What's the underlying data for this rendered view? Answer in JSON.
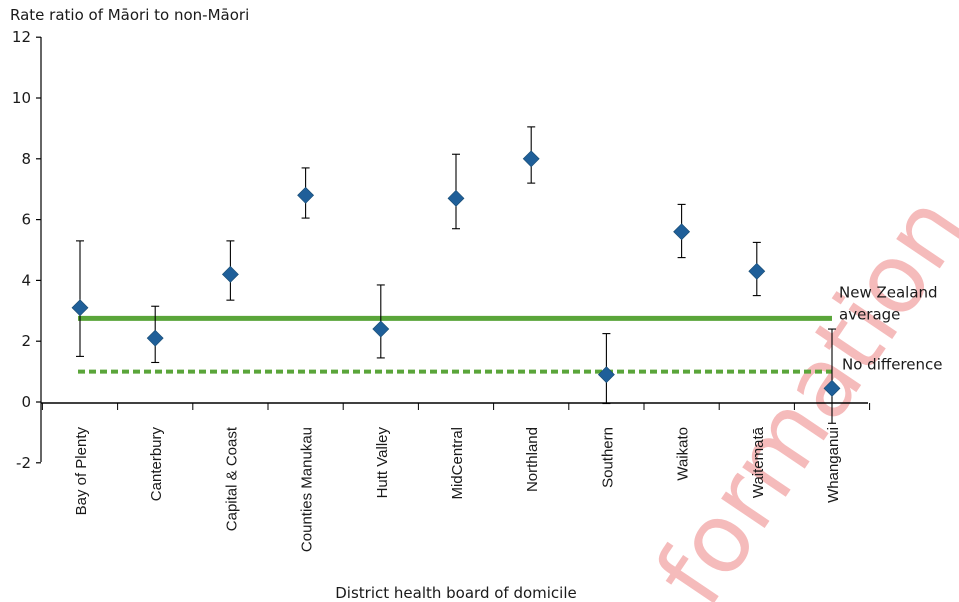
{
  "chart_data": {
    "type": "scatter",
    "ylabel": "Rate ratio of Māori to non-Māori",
    "xlabel": "District health board of domicile",
    "ylim": [
      -2,
      12
    ],
    "yticks": [
      -2,
      0,
      2,
      4,
      6,
      8,
      10,
      12
    ],
    "grid": false,
    "categories": [
      "Bay of Plenty",
      "Canterbury",
      "Capital & Coast",
      "Counties Manukau",
      "Hutt Valley",
      "MidCentral",
      "Northland",
      "Southern",
      "Waikato",
      "Waitematā",
      "Whanganui"
    ],
    "values": [
      3.1,
      2.1,
      4.2,
      6.8,
      2.4,
      6.7,
      8.0,
      0.9,
      5.6,
      4.3,
      0.45
    ],
    "ci_lower": [
      1.5,
      1.3,
      3.35,
      6.05,
      1.45,
      5.7,
      7.2,
      -0.05,
      4.75,
      3.5,
      -0.7
    ],
    "ci_upper": [
      5.3,
      3.15,
      5.3,
      7.7,
      3.85,
      8.15,
      9.05,
      2.25,
      6.5,
      5.25,
      2.4
    ],
    "marker_color": "#1f5f99",
    "reference_lines": [
      {
        "label_lines": [
          "New Zealand",
          "average"
        ],
        "value": 2.75,
        "style": "solid",
        "color": "#5aa53a"
      },
      {
        "label_lines": [
          "No difference"
        ],
        "value": 1.0,
        "style": "dashed",
        "color": "#5aa53a"
      }
    ]
  },
  "watermark": "formation"
}
